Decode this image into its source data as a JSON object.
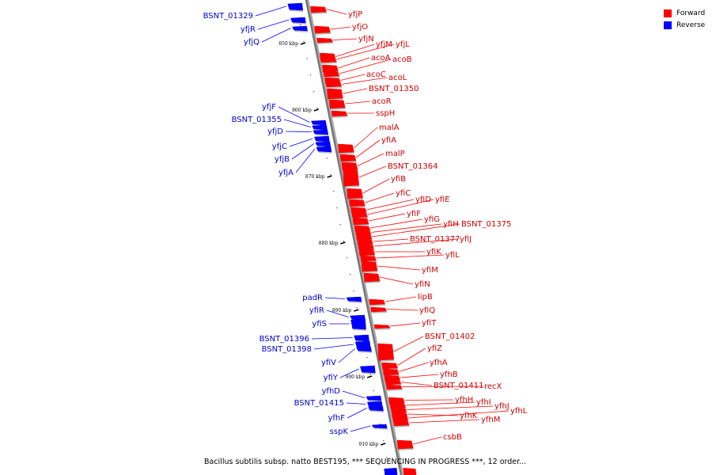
{
  "legend": {
    "forward_label": "Forward",
    "reverse_label": "Reverse",
    "forward_color": "#ff0000",
    "reverse_color": "#0000ff"
  },
  "caption": "Bacillus subtilis subsp. natto BEST195, *** SEQUENCING IN PROGRESS ***, 12 order...",
  "ticks": [
    "850 kbp",
    "860 kbp",
    "870 kbp",
    "880 kbp",
    "890 kbp",
    "900 kbp",
    "910 kbp"
  ],
  "forward_genes": [
    "yfjP",
    "yfjO",
    "yfjN",
    "yfjM",
    "yfjL",
    "acoA",
    "acoB",
    "acoC",
    "acoL",
    "BSNT_01350",
    "acoR",
    "sspH",
    "malA",
    "yfiA",
    "malP",
    "BSNT_01364",
    "yfiB",
    "yfiC",
    "yfiD",
    "yfiE",
    "yfiF",
    "yfiG",
    "yfiH",
    "BSNT_01375",
    "BSNT_01377",
    "yfiJ",
    "yfiK",
    "yfiL",
    "yfiM",
    "yfiN",
    "lipB",
    "yfiQ",
    "yfiT",
    "BSNT_01402",
    "yfiZ",
    "yfhA",
    "yfhB",
    "BSNT_01411",
    "recX",
    "yfhH",
    "yfhI",
    "yfhJ",
    "yfhK",
    "yfhL",
    "yfhM",
    "csbB"
  ],
  "reverse_genes": [
    "BSNT_01329",
    "yfjR",
    "yfjQ",
    "yfjF",
    "BSNT_01355",
    "yfjD",
    "yfjC",
    "yfjB",
    "yfjA",
    "padR",
    "yfiR",
    "yfiS",
    "BSNT_01396",
    "BSNT_01398",
    "yfiV",
    "yfiY",
    "yfhD",
    "BSNT_01415",
    "yfhF",
    "sspK"
  ]
}
